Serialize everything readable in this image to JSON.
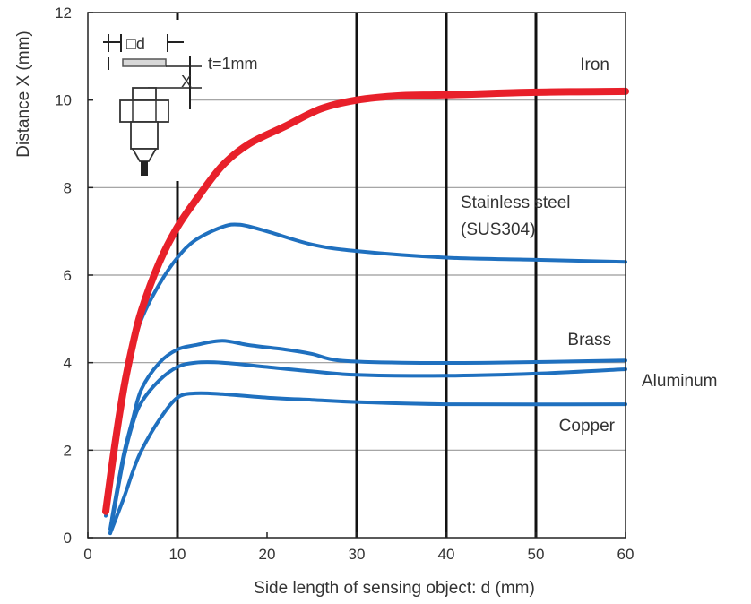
{
  "chart_data": {
    "type": "line",
    "title": "",
    "xlabel": "Side length of sensing object: d (mm)",
    "ylabel": "Distance X (mm)",
    "xlim": [
      0,
      60
    ],
    "ylim": [
      0,
      12
    ],
    "xticks": [
      0,
      10,
      20,
      30,
      40,
      50,
      60
    ],
    "yticks": [
      0,
      2,
      4,
      6,
      8,
      10,
      12
    ],
    "grid": "horizontal gray lines; bold vertical lines at 10, 30, 40, 50",
    "series": [
      {
        "name": "Iron",
        "color": "#e8202a",
        "points": [
          [
            2,
            0.6
          ],
          [
            3,
            2.1
          ],
          [
            4,
            3.4
          ],
          [
            5,
            4.4
          ],
          [
            6,
            5.2
          ],
          [
            8,
            6.3
          ],
          [
            10,
            7.1
          ],
          [
            12,
            7.7
          ],
          [
            15,
            8.5
          ],
          [
            18,
            9.0
          ],
          [
            22,
            9.4
          ],
          [
            26,
            9.8
          ],
          [
            30,
            10.0
          ],
          [
            35,
            10.1
          ],
          [
            40,
            10.12
          ],
          [
            50,
            10.18
          ],
          [
            60,
            10.2
          ]
        ]
      },
      {
        "name": "Stainless steel (SUS304)",
        "color": "#1f70bf",
        "points": [
          [
            2,
            0.5
          ],
          [
            3,
            2.0
          ],
          [
            4,
            3.4
          ],
          [
            5,
            4.3
          ],
          [
            6,
            5.0
          ],
          [
            8,
            5.8
          ],
          [
            10,
            6.4
          ],
          [
            12,
            6.8
          ],
          [
            15,
            7.1
          ],
          [
            17,
            7.15
          ],
          [
            20,
            7.0
          ],
          [
            25,
            6.7
          ],
          [
            30,
            6.55
          ],
          [
            40,
            6.4
          ],
          [
            50,
            6.35
          ],
          [
            60,
            6.3
          ]
        ]
      },
      {
        "name": "Brass",
        "color": "#1f70bf",
        "points": [
          [
            2.5,
            0.2
          ],
          [
            3,
            0.8
          ],
          [
            4,
            1.9
          ],
          [
            5,
            2.7
          ],
          [
            6,
            3.4
          ],
          [
            8,
            4.0
          ],
          [
            10,
            4.3
          ],
          [
            12,
            4.4
          ],
          [
            15,
            4.5
          ],
          [
            18,
            4.4
          ],
          [
            22,
            4.3
          ],
          [
            25,
            4.2
          ],
          [
            28,
            4.05
          ],
          [
            35,
            4.0
          ],
          [
            45,
            4.0
          ],
          [
            60,
            4.05
          ]
        ]
      },
      {
        "name": "Aluminum",
        "color": "#1f70bf",
        "points": [
          [
            2.5,
            0.1
          ],
          [
            3,
            0.7
          ],
          [
            4,
            1.8
          ],
          [
            5,
            2.6
          ],
          [
            6,
            3.1
          ],
          [
            8,
            3.6
          ],
          [
            10,
            3.9
          ],
          [
            12,
            4.0
          ],
          [
            15,
            4.0
          ],
          [
            20,
            3.9
          ],
          [
            25,
            3.8
          ],
          [
            30,
            3.72
          ],
          [
            40,
            3.7
          ],
          [
            50,
            3.75
          ],
          [
            60,
            3.85
          ]
        ]
      },
      {
        "name": "Copper",
        "color": "#1f70bf",
        "points": [
          [
            2.5,
            0.1
          ],
          [
            4,
            0.9
          ],
          [
            5,
            1.5
          ],
          [
            6,
            2.0
          ],
          [
            8,
            2.7
          ],
          [
            10,
            3.2
          ],
          [
            12,
            3.3
          ],
          [
            15,
            3.28
          ],
          [
            20,
            3.2
          ],
          [
            25,
            3.15
          ],
          [
            30,
            3.1
          ],
          [
            40,
            3.05
          ],
          [
            60,
            3.05
          ]
        ]
      }
    ],
    "annotations": [
      {
        "text": "Iron"
      },
      {
        "text": "Stainless steel"
      },
      {
        "text": "(SUS304)"
      },
      {
        "text": "Brass"
      },
      {
        "text": "Aluminum"
      },
      {
        "text": "Copper"
      }
    ]
  },
  "diagram": {
    "d_label": "□d",
    "x_label": "X",
    "t_label": "t=1mm"
  }
}
